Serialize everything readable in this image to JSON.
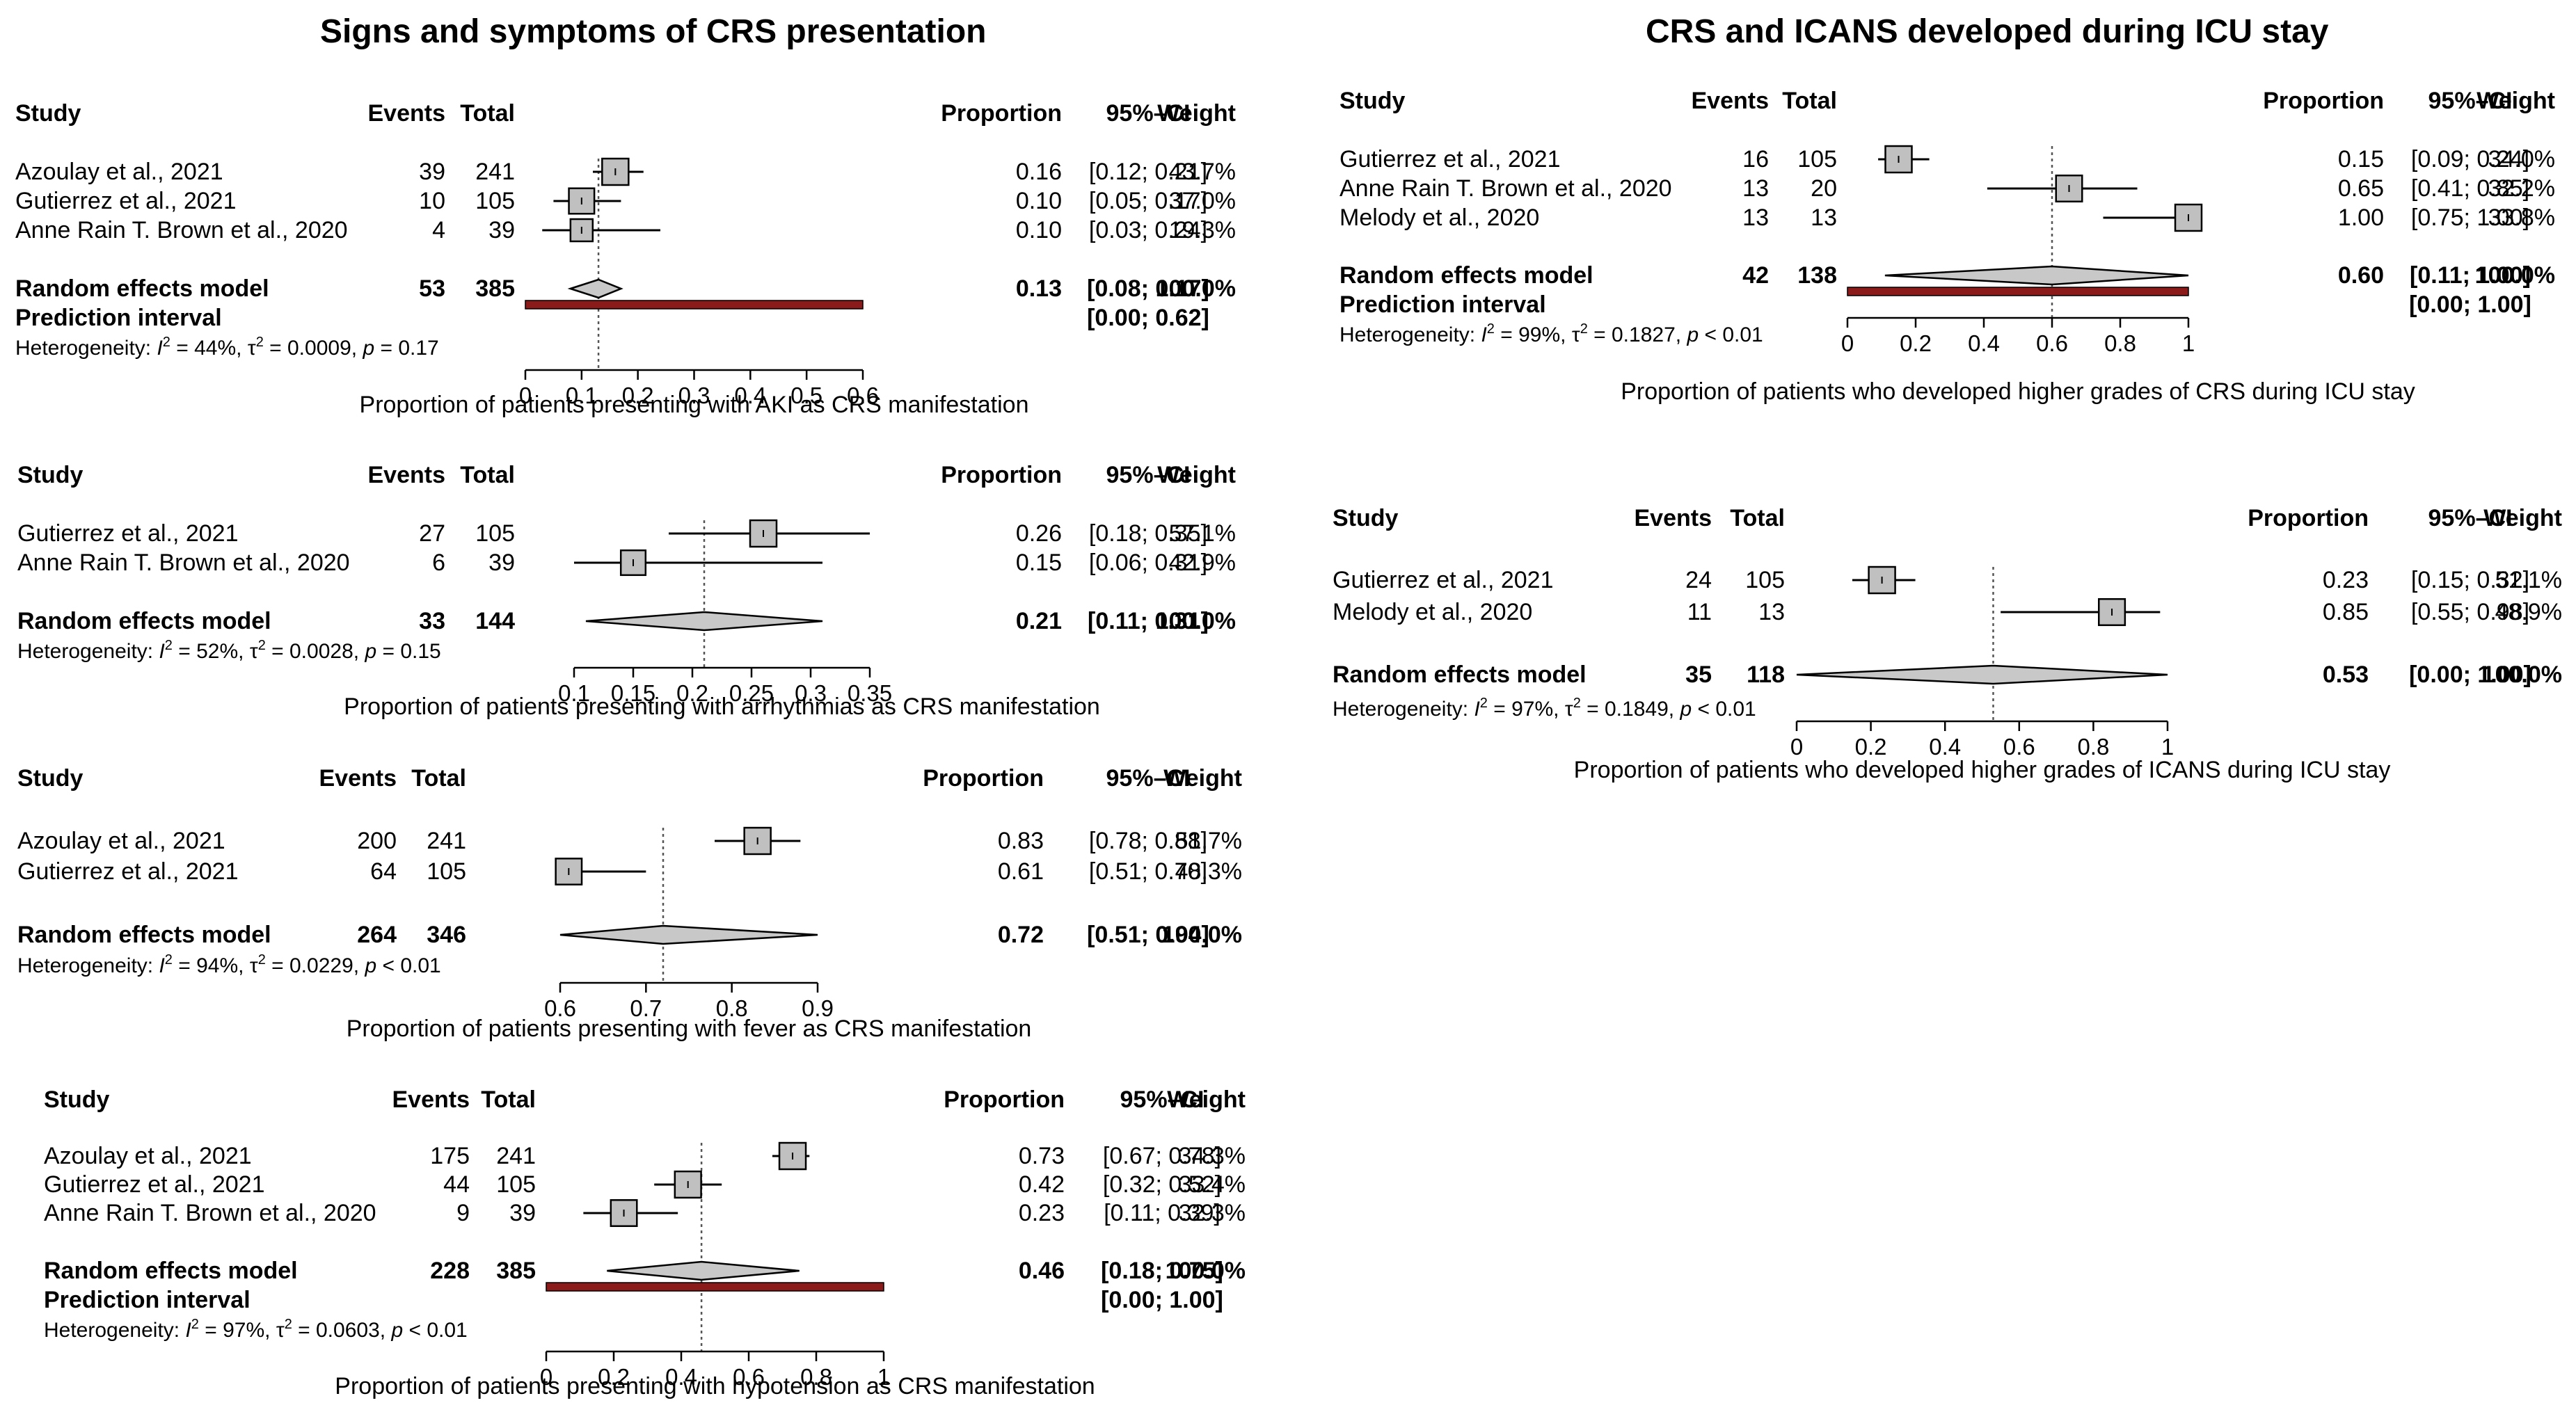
{
  "figure": {
    "left_title": "Signs and symptoms of CRS presentation",
    "right_title": "CRS and ICANS developed during ICU stay"
  },
  "chart_data": [
    {
      "type": "forest",
      "panel": "left",
      "header": {
        "study": "Study",
        "events": "Events",
        "total": "Total",
        "proportion": "Proportion",
        "ci": "95%–CI",
        "weight": "Weight"
      },
      "studies": [
        {
          "name": "Azoulay et al., 2021",
          "events": "39",
          "total": "241",
          "prop": 0.16,
          "lower": 0.12,
          "upper": 0.21,
          "prop_text": "0.16",
          "ci_text": "[0.12; 0.21]",
          "weight_text": "43.7%",
          "weight": 43.7
        },
        {
          "name": "Gutierrez et al., 2021",
          "events": "10",
          "total": "105",
          "prop": 0.1,
          "lower": 0.05,
          "upper": 0.17,
          "prop_text": "0.10",
          "ci_text": "[0.05; 0.17]",
          "weight_text": "37.0%",
          "weight": 37.0
        },
        {
          "name": "Anne Rain T. Brown et al., 2020",
          "events": "4",
          "total": "39",
          "prop": 0.1,
          "lower": 0.03,
          "upper": 0.24,
          "prop_text": "0.10",
          "ci_text": "[0.03; 0.24]",
          "weight_text": "19.3%",
          "weight": 19.3
        }
      ],
      "random": {
        "label": "Random effects model",
        "events": "53",
        "total": "385",
        "est": 0.13,
        "lower": 0.08,
        "upper": 0.17,
        "prop_text": "0.13",
        "ci_text": "[0.08; 0.17]",
        "weight_text": "100.0%"
      },
      "prediction": {
        "label": "Prediction interval",
        "lower": 0.0,
        "upper": 0.62,
        "ci_text": "[0.00; 0.62]"
      },
      "heterogeneity": {
        "prefix": "Heterogeneity: ",
        "i2": "I",
        "i2_value": " = 44%, τ",
        "tau2_value": " = 0.0009, ",
        "p": "p",
        "p_value": " = 0.17"
      },
      "axis": {
        "min": 0,
        "max": 0.6,
        "ticks": [
          0,
          0.1,
          0.2,
          0.3,
          0.4,
          0.5,
          0.6
        ],
        "tick_labels": [
          "0",
          "0.1",
          "0.2",
          "0.3",
          "0.4",
          "0.5",
          "0.6"
        ]
      },
      "xlabel": "Proportion of patients presenting with AKI as CRS manifestation"
    },
    {
      "type": "forest",
      "panel": "left",
      "header": {
        "study": "Study",
        "events": "Events",
        "total": "Total",
        "proportion": "Proportion",
        "ci": "95%–CI",
        "weight": "Weight"
      },
      "studies": [
        {
          "name": "Gutierrez et al., 2021",
          "events": "27",
          "total": "105",
          "prop": 0.26,
          "lower": 0.18,
          "upper": 0.35,
          "prop_text": "0.26",
          "ci_text": "[0.18; 0.35]",
          "weight_text": "57.1%",
          "weight": 57.1
        },
        {
          "name": "Anne Rain T. Brown et al., 2020",
          "events": "6",
          "total": "39",
          "prop": 0.15,
          "lower": 0.06,
          "upper": 0.31,
          "prop_text": "0.15",
          "ci_text": "[0.06; 0.31]",
          "weight_text": "42.9%",
          "weight": 42.9
        }
      ],
      "random": {
        "label": "Random effects model",
        "events": "33",
        "total": "144",
        "est": 0.21,
        "lower": 0.11,
        "upper": 0.31,
        "prop_text": "0.21",
        "ci_text": "[0.11; 0.31]",
        "weight_text": "100.0%"
      },
      "prediction": null,
      "heterogeneity": {
        "prefix": "Heterogeneity: ",
        "i2": "I",
        "i2_value": " = 52%, τ",
        "tau2_value": " = 0.0028, ",
        "p": "p",
        "p_value": " = 0.15"
      },
      "axis": {
        "min": 0.1,
        "max": 0.35,
        "ticks": [
          0.1,
          0.15,
          0.2,
          0.25,
          0.3,
          0.35
        ],
        "tick_labels": [
          "0.1",
          "0.15",
          "0.2",
          "0.25",
          "0.3",
          "0.35"
        ]
      },
      "xlabel": "Proportion of patients presenting with arrhythmias as CRS manifestation"
    },
    {
      "type": "forest",
      "panel": "left",
      "header": {
        "study": "Study",
        "events": "Events",
        "total": "Total",
        "proportion": "Proportion",
        "ci": "95%–CI",
        "weight": "Weight"
      },
      "studies": [
        {
          "name": "Azoulay et al., 2021",
          "events": "200",
          "total": "241",
          "prop": 0.83,
          "lower": 0.78,
          "upper": 0.88,
          "prop_text": "0.83",
          "ci_text": "[0.78; 0.88]",
          "weight_text": "51.7%",
          "weight": 51.7
        },
        {
          "name": "Gutierrez et al., 2021",
          "events": "64",
          "total": "105",
          "prop": 0.61,
          "lower": 0.51,
          "upper": 0.7,
          "prop_text": "0.61",
          "ci_text": "[0.51; 0.70]",
          "weight_text": "48.3%",
          "weight": 48.3
        }
      ],
      "random": {
        "label": "Random effects model",
        "events": "264",
        "total": "346",
        "est": 0.72,
        "lower": 0.51,
        "upper": 0.94,
        "prop_text": "0.72",
        "ci_text": "[0.51; 0.94]",
        "weight_text": "100.0%"
      },
      "prediction": null,
      "heterogeneity": {
        "prefix": "Heterogeneity: ",
        "i2": "I",
        "i2_value": " = 94%, τ",
        "tau2_value": " = 0.0229, ",
        "p": "p",
        "p_value": " < 0.01"
      },
      "axis": {
        "min": 0.6,
        "max": 0.9,
        "ticks": [
          0.6,
          0.7,
          0.8,
          0.9
        ],
        "tick_labels": [
          "0.6",
          "0.7",
          "0.8",
          "0.9"
        ]
      },
      "xlabel": "Proportion of patients presenting with fever as CRS manifestation"
    },
    {
      "type": "forest",
      "panel": "left",
      "header": {
        "study": "Study",
        "events": "Events",
        "total": "Total",
        "proportion": "Proportion",
        "ci": "95%–CI",
        "weight": "Weight"
      },
      "studies": [
        {
          "name": "Azoulay et al., 2021",
          "events": "175",
          "total": "241",
          "prop": 0.73,
          "lower": 0.67,
          "upper": 0.78,
          "prop_text": "0.73",
          "ci_text": "[0.67; 0.78]",
          "weight_text": "34.3%",
          "weight": 34.3
        },
        {
          "name": "Gutierrez et al., 2021",
          "events": "44",
          "total": "105",
          "prop": 0.42,
          "lower": 0.32,
          "upper": 0.52,
          "prop_text": "0.42",
          "ci_text": "[0.32; 0.52]",
          "weight_text": "33.4%",
          "weight": 33.4
        },
        {
          "name": "Anne Rain T. Brown et al., 2020",
          "events": "9",
          "total": "39",
          "prop": 0.23,
          "lower": 0.11,
          "upper": 0.39,
          "prop_text": "0.23",
          "ci_text": "[0.11; 0.39]",
          "weight_text": "32.3%",
          "weight": 32.3
        }
      ],
      "random": {
        "label": "Random effects model",
        "events": "228",
        "total": "385",
        "est": 0.46,
        "lower": 0.18,
        "upper": 0.75,
        "prop_text": "0.46",
        "ci_text": "[0.18; 0.75]",
        "weight_text": "100.0%"
      },
      "prediction": {
        "label": "Prediction interval",
        "lower": 0.0,
        "upper": 1.0,
        "ci_text": "[0.00; 1.00]"
      },
      "heterogeneity": {
        "prefix": "Heterogeneity: ",
        "i2": "I",
        "i2_value": " = 97%, τ",
        "tau2_value": " = 0.0603, ",
        "p": "p",
        "p_value": " < 0.01"
      },
      "axis": {
        "min": 0,
        "max": 1,
        "ticks": [
          0,
          0.2,
          0.4,
          0.6,
          0.8,
          1
        ],
        "tick_labels": [
          "0",
          "0.2",
          "0.4",
          "0.6",
          "0.8",
          "1"
        ]
      },
      "xlabel": "Proportion of patients presenting with hypotension as CRS manifestation"
    },
    {
      "type": "forest",
      "panel": "right",
      "header": {
        "study": "Study",
        "events": "Events",
        "total": "Total",
        "proportion": "Proportion",
        "ci": "95%–CI",
        "weight": "Weight"
      },
      "studies": [
        {
          "name": "Gutierrez et al., 2021",
          "events": "16",
          "total": "105",
          "prop": 0.15,
          "lower": 0.09,
          "upper": 0.24,
          "prop_text": "0.15",
          "ci_text": "[0.09; 0.24]",
          "weight_text": "34.0%",
          "weight": 34.0
        },
        {
          "name": "Anne Rain T. Brown et al., 2020",
          "events": "13",
          "total": "20",
          "prop": 0.65,
          "lower": 0.41,
          "upper": 0.85,
          "prop_text": "0.65",
          "ci_text": "[0.41; 0.85]",
          "weight_text": "32.2%",
          "weight": 32.2
        },
        {
          "name": "Melody et al., 2020",
          "events": "13",
          "total": "13",
          "prop": 1.0,
          "lower": 0.75,
          "upper": 1.0,
          "prop_text": "1.00",
          "ci_text": "[0.75; 1.00]",
          "weight_text": "33.8%",
          "weight": 33.8
        }
      ],
      "random": {
        "label": "Random effects model",
        "events": "42",
        "total": "138",
        "est": 0.6,
        "lower": 0.11,
        "upper": 1.0,
        "prop_text": "0.60",
        "ci_text": "[0.11; 1.00]",
        "weight_text": "100.0%"
      },
      "prediction": {
        "label": "Prediction interval",
        "lower": 0.0,
        "upper": 1.0,
        "ci_text": "[0.00; 1.00]"
      },
      "heterogeneity": {
        "prefix": "Heterogeneity: ",
        "i2": "I",
        "i2_value": " = 99%, τ",
        "tau2_value": " = 0.1827, ",
        "p": "p",
        "p_value": " < 0.01"
      },
      "axis": {
        "min": 0,
        "max": 1,
        "ticks": [
          0,
          0.2,
          0.4,
          0.6,
          0.8,
          1
        ],
        "tick_labels": [
          "0",
          "0.2",
          "0.4",
          "0.6",
          "0.8",
          "1"
        ]
      },
      "xlabel": "Proportion of patients who developed higher grades of CRS during ICU stay"
    },
    {
      "type": "forest",
      "panel": "right",
      "header": {
        "study": "Study",
        "events": "Events",
        "total": "Total",
        "proportion": "Proportion",
        "ci": "95%–CI",
        "weight": "Weight"
      },
      "studies": [
        {
          "name": "Gutierrez et al., 2021",
          "events": "24",
          "total": "105",
          "prop": 0.23,
          "lower": 0.15,
          "upper": 0.32,
          "prop_text": "0.23",
          "ci_text": "[0.15; 0.32]",
          "weight_text": "51.1%",
          "weight": 51.1
        },
        {
          "name": "Melody et al., 2020",
          "events": "11",
          "total": "13",
          "prop": 0.85,
          "lower": 0.55,
          "upper": 0.98,
          "prop_text": "0.85",
          "ci_text": "[0.55; 0.98]",
          "weight_text": "48.9%",
          "weight": 48.9
        }
      ],
      "random": {
        "label": "Random effects model",
        "events": "35",
        "total": "118",
        "est": 0.53,
        "lower": 0.0,
        "upper": 1.0,
        "prop_text": "0.53",
        "ci_text": "[0.00; 1.00]",
        "weight_text": "100.0%"
      },
      "prediction": null,
      "heterogeneity": {
        "prefix": "Heterogeneity: ",
        "i2": "I",
        "i2_value": " = 97%, τ",
        "tau2_value": " = 0.1849, ",
        "p": "p",
        "p_value": " < 0.01"
      },
      "axis": {
        "min": 0,
        "max": 1,
        "ticks": [
          0,
          0.2,
          0.4,
          0.6,
          0.8,
          1
        ],
        "tick_labels": [
          "0",
          "0.2",
          "0.4",
          "0.6",
          "0.8",
          "1"
        ]
      },
      "xlabel": "Proportion of patients who developed higher grades of ICANS during ICU stay"
    }
  ],
  "colors": {
    "box_fill": "#c0c0c0",
    "diamond_fill": "#c8c8c8",
    "prediction_bar": "#8b1a1a",
    "ref_line": "#555555"
  }
}
